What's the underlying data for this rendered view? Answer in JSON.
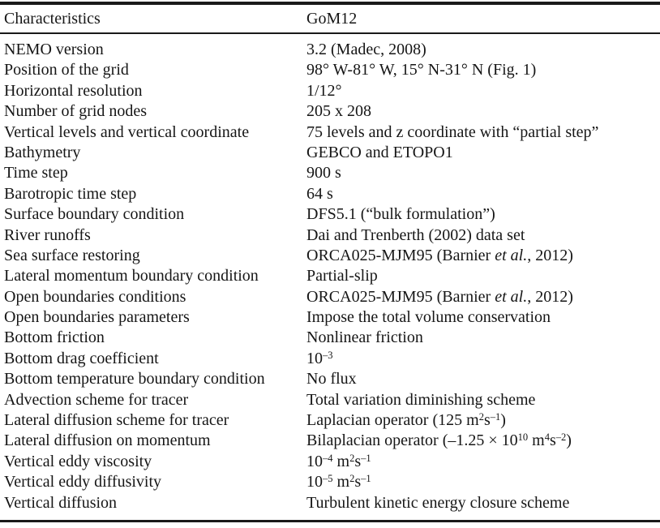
{
  "table": {
    "header": {
      "col1": "Characteristics",
      "col2": "GoM12"
    },
    "rows": [
      {
        "c": "NEMO version",
        "v": [
          {
            "t": "3.2 (Madec, 2008)"
          }
        ]
      },
      {
        "c": "Position of the grid",
        "v": [
          {
            "t": "98° W-81° W, 15° N-31° N (Fig. 1)"
          }
        ]
      },
      {
        "c": "Horizontal resolution",
        "v": [
          {
            "t": "1/12°"
          }
        ]
      },
      {
        "c": "Number of grid nodes",
        "v": [
          {
            "t": "205 x 208"
          }
        ]
      },
      {
        "c": "Vertical levels and vertical coordinate",
        "v": [
          {
            "t": "75 levels and z coordinate with “partial step”"
          }
        ]
      },
      {
        "c": "Bathymetry",
        "v": [
          {
            "t": "GEBCO and ETOPO1"
          }
        ]
      },
      {
        "c": "Time step",
        "v": [
          {
            "t": "900 s"
          }
        ]
      },
      {
        "c": "Barotropic time step",
        "v": [
          {
            "t": "64 s"
          }
        ]
      },
      {
        "c": "Surface boundary condition",
        "v": [
          {
            "t": "DFS5.1 (“bulk formulation”)"
          }
        ]
      },
      {
        "c": "River runoffs",
        "v": [
          {
            "t": "Dai and Trenberth (2002) data set"
          }
        ]
      },
      {
        "c": "Sea surface restoring",
        "v": [
          {
            "t": "ORCA025-MJM95 (Barnier "
          },
          {
            "t": "et al.",
            "i": true
          },
          {
            "t": ", 2012)"
          }
        ]
      },
      {
        "c": "Lateral momentum boundary condition",
        "v": [
          {
            "t": "Partial-slip"
          }
        ]
      },
      {
        "c": "Open boundaries conditions",
        "v": [
          {
            "t": "ORCA025-MJM95 (Barnier "
          },
          {
            "t": "et al.",
            "i": true
          },
          {
            "t": ", 2012)"
          }
        ]
      },
      {
        "c": "Open boundaries parameters",
        "v": [
          {
            "t": "Impose the total volume conservation"
          }
        ]
      },
      {
        "c": "Bottom friction",
        "v": [
          {
            "t": "Nonlinear friction"
          }
        ]
      },
      {
        "c": "Bottom drag coefficient",
        "v": [
          {
            "t": "10"
          },
          {
            "t": "–3",
            "sup": true
          }
        ]
      },
      {
        "c": "Bottom temperature boundary condition",
        "v": [
          {
            "t": "No flux"
          }
        ]
      },
      {
        "c": "Advection scheme for tracer",
        "v": [
          {
            "t": "Total variation diminishing scheme"
          }
        ]
      },
      {
        "c": "Lateral diffusion scheme for tracer",
        "v": [
          {
            "t": "Laplacian operator (125 m"
          },
          {
            "t": "2",
            "sup": true
          },
          {
            "t": "s"
          },
          {
            "t": "–1",
            "sup": true
          },
          {
            "t": ")"
          }
        ]
      },
      {
        "c": "Lateral diffusion on momentum",
        "v": [
          {
            "t": "Bilaplacian operator (–1.25 × 10"
          },
          {
            "t": "10",
            "sup": true
          },
          {
            "t": " m"
          },
          {
            "t": "4",
            "sup": true
          },
          {
            "t": "s"
          },
          {
            "t": "–2",
            "sup": true
          },
          {
            "t": ")"
          }
        ]
      },
      {
        "c": "Vertical eddy viscosity",
        "v": [
          {
            "t": "10"
          },
          {
            "t": "–4",
            "sup": true
          },
          {
            "t": " m"
          },
          {
            "t": "2",
            "sup": true
          },
          {
            "t": "s"
          },
          {
            "t": "–1",
            "sup": true
          }
        ]
      },
      {
        "c": "Vertical eddy diffusivity",
        "v": [
          {
            "t": "10"
          },
          {
            "t": "–5",
            "sup": true
          },
          {
            "t": " m"
          },
          {
            "t": "2",
            "sup": true
          },
          {
            "t": "s"
          },
          {
            "t": "–1",
            "sup": true
          }
        ]
      },
      {
        "c": "Vertical diffusion",
        "v": [
          {
            "t": "Turbulent kinetic energy closure scheme"
          }
        ]
      }
    ]
  },
  "colors": {
    "text": "#161616",
    "rule": "#1a1a1a",
    "background": "#ffffff"
  }
}
